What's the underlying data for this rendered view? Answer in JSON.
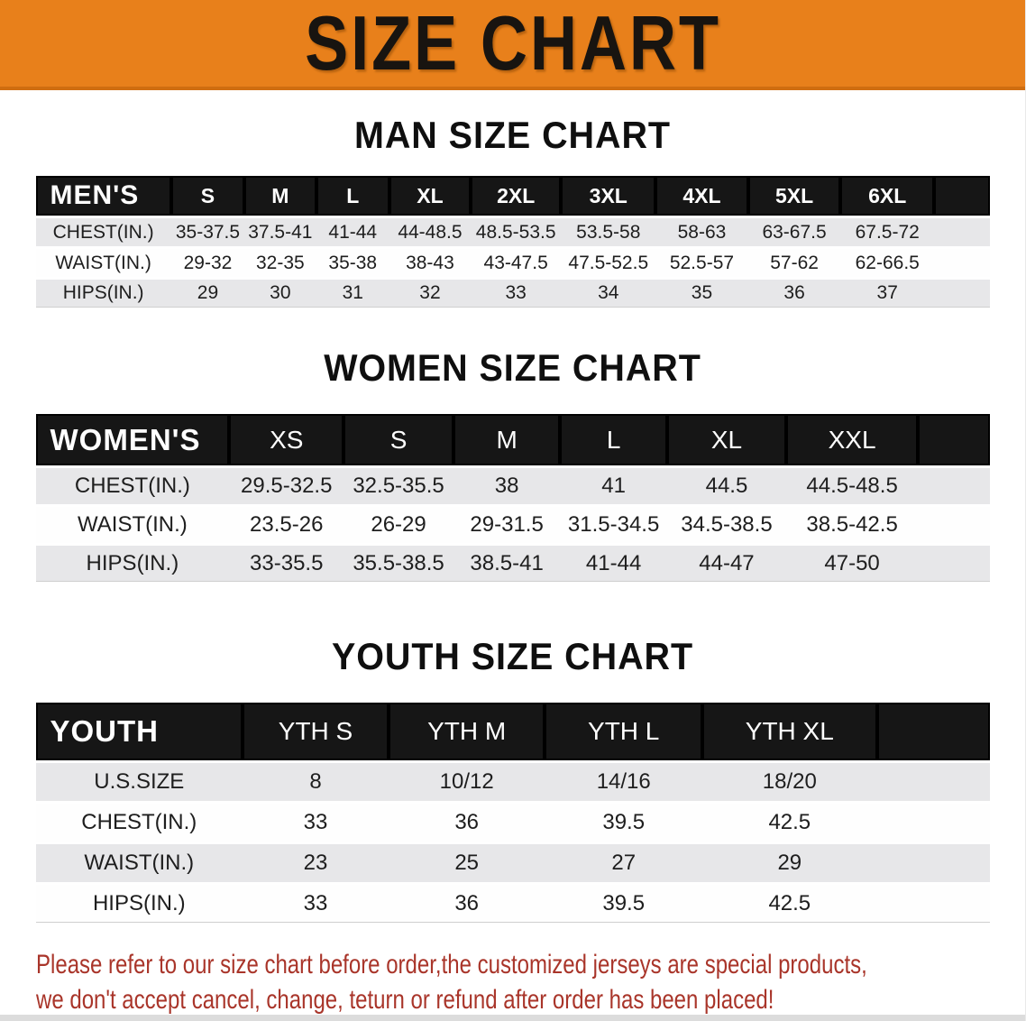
{
  "banner": {
    "title": "SIZE CHART",
    "bg_color": "#E8801B",
    "text_color": "#181410"
  },
  "colors": {
    "header_bar": "#161616",
    "row_shade": "#E7E7E9",
    "row_plain": "#FEFEFE",
    "footer_text": "#A9352A"
  },
  "sections": [
    {
      "heading": "MAN SIZE CHART",
      "table": {
        "header_label": "MEN'S",
        "columns": [
          "S",
          "M",
          "L",
          "XL",
          "2XL",
          "3XL",
          "4XL",
          "5XL",
          "6XL"
        ],
        "rows": [
          {
            "label": "CHEST(IN.)",
            "values": [
              "35-37.5",
              "37.5-41",
              "41-44",
              "44-48.5",
              "48.5-53.5",
              "53.5-58",
              "58-63",
              "63-67.5",
              "67.5-72"
            ]
          },
          {
            "label": "WAIST(IN.)",
            "values": [
              "29-32",
              "32-35",
              "35-38",
              "38-43",
              "43-47.5",
              "47.5-52.5",
              "52.5-57",
              "57-62",
              "62-66.5"
            ]
          },
          {
            "label": "HIPS(IN.)",
            "values": [
              "29",
              "30",
              "31",
              "32",
              "33",
              "34",
              "35",
              "36",
              "37"
            ]
          }
        ]
      }
    },
    {
      "heading": "WOMEN SIZE CHART",
      "table": {
        "header_label": "WOMEN'S",
        "columns": [
          "XS",
          "S",
          "M",
          "L",
          "XL",
          "XXL"
        ],
        "rows": [
          {
            "label": "CHEST(IN.)",
            "values": [
              "29.5-32.5",
              "32.5-35.5",
              "38",
              "41",
              "44.5",
              "44.5-48.5"
            ]
          },
          {
            "label": "WAIST(IN.)",
            "values": [
              "23.5-26",
              "26-29",
              "29-31.5",
              "31.5-34.5",
              "34.5-38.5",
              "38.5-42.5"
            ]
          },
          {
            "label": "HIPS(IN.)",
            "values": [
              "33-35.5",
              "35.5-38.5",
              "38.5-41",
              "41-44",
              "44-47",
              "47-50"
            ]
          }
        ]
      }
    },
    {
      "heading": "YOUTH SIZE CHART",
      "table": {
        "header_label": "YOUTH",
        "columns": [
          "YTH S",
          "YTH M",
          "YTH L",
          "YTH XL"
        ],
        "rows": [
          {
            "label": "U.S.SIZE",
            "values": [
              "8",
              "10/12",
              "14/16",
              "18/20"
            ]
          },
          {
            "label": "CHEST(IN.)",
            "values": [
              "33",
              "36",
              "39.5",
              "42.5"
            ]
          },
          {
            "label": "WAIST(IN.)",
            "values": [
              "23",
              "25",
              "27",
              "29"
            ]
          },
          {
            "label": "HIPS(IN.)",
            "values": [
              "33",
              "36",
              "39.5",
              "42.5"
            ]
          }
        ]
      }
    }
  ],
  "footer": {
    "line1": "Please refer to our size chart before order,the customized jerseys are special products,",
    "line2": "we don't accept cancel, change, teturn or refund after order has been placed!"
  }
}
